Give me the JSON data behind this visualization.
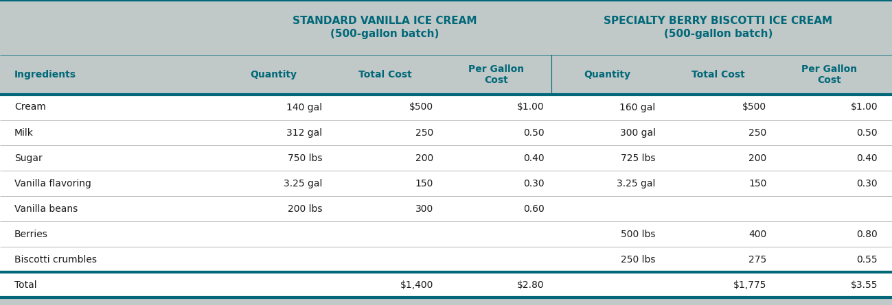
{
  "title1": "STANDARD VANILLA ICE CREAM\n(500-gallon batch)",
  "title2": "SPECIALTY BERRY BISCOTTI ICE CREAM\n(500-gallon batch)",
  "header_row": [
    "Ingredients",
    "Quantity",
    "Total Cost",
    "Per Gallon\nCost",
    "Quantity",
    "Total Cost",
    "Per Gallon\nCost"
  ],
  "rows": [
    [
      "Cream",
      "140 gal",
      "$500",
      "$1.00",
      "160 gal",
      "$500",
      "$1.00"
    ],
    [
      "Milk",
      "312 gal",
      "250",
      "0.50",
      "300 gal",
      "250",
      "0.50"
    ],
    [
      "Sugar",
      "750 lbs",
      "200",
      "0.40",
      "725 lbs",
      "200",
      "0.40"
    ],
    [
      "Vanilla flavoring",
      "3.25 gal",
      "150",
      "0.30",
      "3.25 gal",
      "150",
      "0.30"
    ],
    [
      "Vanilla beans",
      "200 lbs",
      "300",
      "0.60",
      "",
      "",
      ""
    ],
    [
      "Berries",
      "",
      "",
      "",
      "500 lbs",
      "400",
      "0.80"
    ],
    [
      "Biscotti crumbles",
      "",
      "",
      "",
      "250 lbs",
      "275",
      "0.55"
    ]
  ],
  "total_row": [
    "Total",
    "",
    "$1,400",
    "$2.80",
    "",
    "$1,775",
    "$3.55"
  ],
  "bg_gray": "#c0c8c8",
  "bg_teal": "#006878",
  "bg_white": "#ffffff",
  "text_teal": "#006878",
  "text_dark": "#1a1a1a",
  "figsize": [
    12.99,
    4.45
  ],
  "dpi": 100,
  "col_props": [
    0.19,
    0.1,
    0.1,
    0.1,
    0.1,
    0.1,
    0.1
  ],
  "title_fontsize": 11.0,
  "header_fontsize": 10.0,
  "data_fontsize": 10.0
}
